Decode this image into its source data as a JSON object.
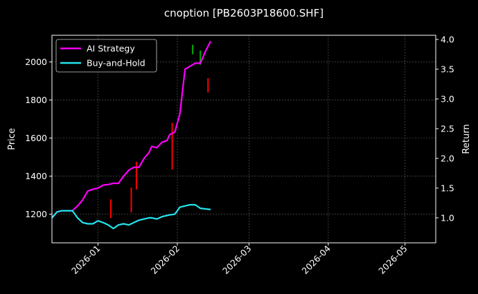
{
  "chart_data": {
    "type": "line",
    "title": "cnoption [PB2603P18600.SHF]",
    "ylabel": "Price",
    "y2label": "Return",
    "xlim": [
      "2025-12-14",
      "2026-05-13"
    ],
    "ylim": [
      1050,
      2140
    ],
    "y2lim": [
      0.58,
      4.07
    ],
    "x_ticks": [
      "2026-01",
      "2026-02",
      "2026-03",
      "2026-04",
      "2026-05"
    ],
    "y_ticks": [
      1200,
      1400,
      1600,
      1800,
      2000
    ],
    "y2_ticks": [
      "1.0",
      "1.5",
      "2.0",
      "2.5",
      "3.0",
      "3.5",
      "4.0"
    ],
    "grid": true,
    "legend": "top-left",
    "colors": {
      "background": "#000000",
      "ai_strategy": "#ff00ff",
      "buy_and_hold": "#22e5ee",
      "candle_up": "#00b000",
      "candle_down": "#ff0000"
    },
    "series": [
      {
        "name": "AI Strategy",
        "axis": "right",
        "x": [
          "2025-12-14",
          "2025-12-16",
          "2025-12-18",
          "2025-12-20",
          "2025-12-22",
          "2025-12-24",
          "2025-12-26",
          "2025-12-28",
          "2025-12-30",
          "2026-01-01",
          "2026-01-03",
          "2026-01-05",
          "2026-01-07",
          "2026-01-09",
          "2026-01-11",
          "2026-01-13",
          "2026-01-15",
          "2026-01-17",
          "2026-01-19",
          "2026-01-21",
          "2026-01-22",
          "2026-01-24",
          "2026-01-26",
          "2026-01-28",
          "2026-01-29",
          "2026-01-31",
          "2026-02-02",
          "2026-02-04",
          "2026-02-06",
          "2026-02-08",
          "2026-02-10",
          "2026-02-12",
          "2026-02-14"
        ],
        "values": [
          1.0,
          1.1,
          1.12,
          1.12,
          1.12,
          1.2,
          1.3,
          1.45,
          1.48,
          1.5,
          1.55,
          1.56,
          1.58,
          1.58,
          1.7,
          1.8,
          1.85,
          1.85,
          2.0,
          2.1,
          2.2,
          2.18,
          2.27,
          2.3,
          2.4,
          2.44,
          2.75,
          3.5,
          3.55,
          3.6,
          3.6,
          3.8,
          3.97
        ]
      },
      {
        "name": "Buy-and-Hold",
        "axis": "right",
        "x": [
          "2025-12-14",
          "2025-12-16",
          "2025-12-18",
          "2025-12-20",
          "2025-12-22",
          "2025-12-24",
          "2025-12-26",
          "2025-12-28",
          "2025-12-30",
          "2026-01-01",
          "2026-01-03",
          "2026-01-05",
          "2026-01-07",
          "2026-01-09",
          "2026-01-11",
          "2026-01-13",
          "2026-01-15",
          "2026-01-17",
          "2026-01-19",
          "2026-01-21",
          "2026-01-22",
          "2026-01-24",
          "2026-01-26",
          "2026-01-28",
          "2026-01-29",
          "2026-01-31",
          "2026-02-02",
          "2026-02-04",
          "2026-02-06",
          "2026-02-08",
          "2026-02-10",
          "2026-02-12",
          "2026-02-14"
        ],
        "values": [
          1.0,
          1.1,
          1.12,
          1.12,
          1.12,
          1.0,
          0.92,
          0.9,
          0.9,
          0.95,
          0.92,
          0.88,
          0.82,
          0.88,
          0.9,
          0.88,
          0.92,
          0.96,
          0.98,
          1.0,
          1.0,
          0.98,
          1.02,
          1.04,
          1.05,
          1.06,
          1.18,
          1.2,
          1.22,
          1.22,
          1.16,
          1.15,
          1.14
        ]
      }
    ],
    "candles": [
      {
        "x": "2026-01-06",
        "low": 1180,
        "high": 1278,
        "dir": "down"
      },
      {
        "x": "2026-01-14",
        "low": 1210,
        "high": 1340,
        "dir": "down"
      },
      {
        "x": "2026-01-16",
        "low": 1330,
        "high": 1475,
        "dir": "down"
      },
      {
        "x": "2026-01-30",
        "low": 1435,
        "high": 1680,
        "dir": "down"
      },
      {
        "x": "2026-02-07",
        "low": 2040,
        "high": 2090,
        "dir": "up"
      },
      {
        "x": "2026-02-10",
        "low": 1985,
        "high": 2060,
        "dir": "up"
      },
      {
        "x": "2026-02-13",
        "low": 1840,
        "high": 1915,
        "dir": "down"
      }
    ]
  }
}
